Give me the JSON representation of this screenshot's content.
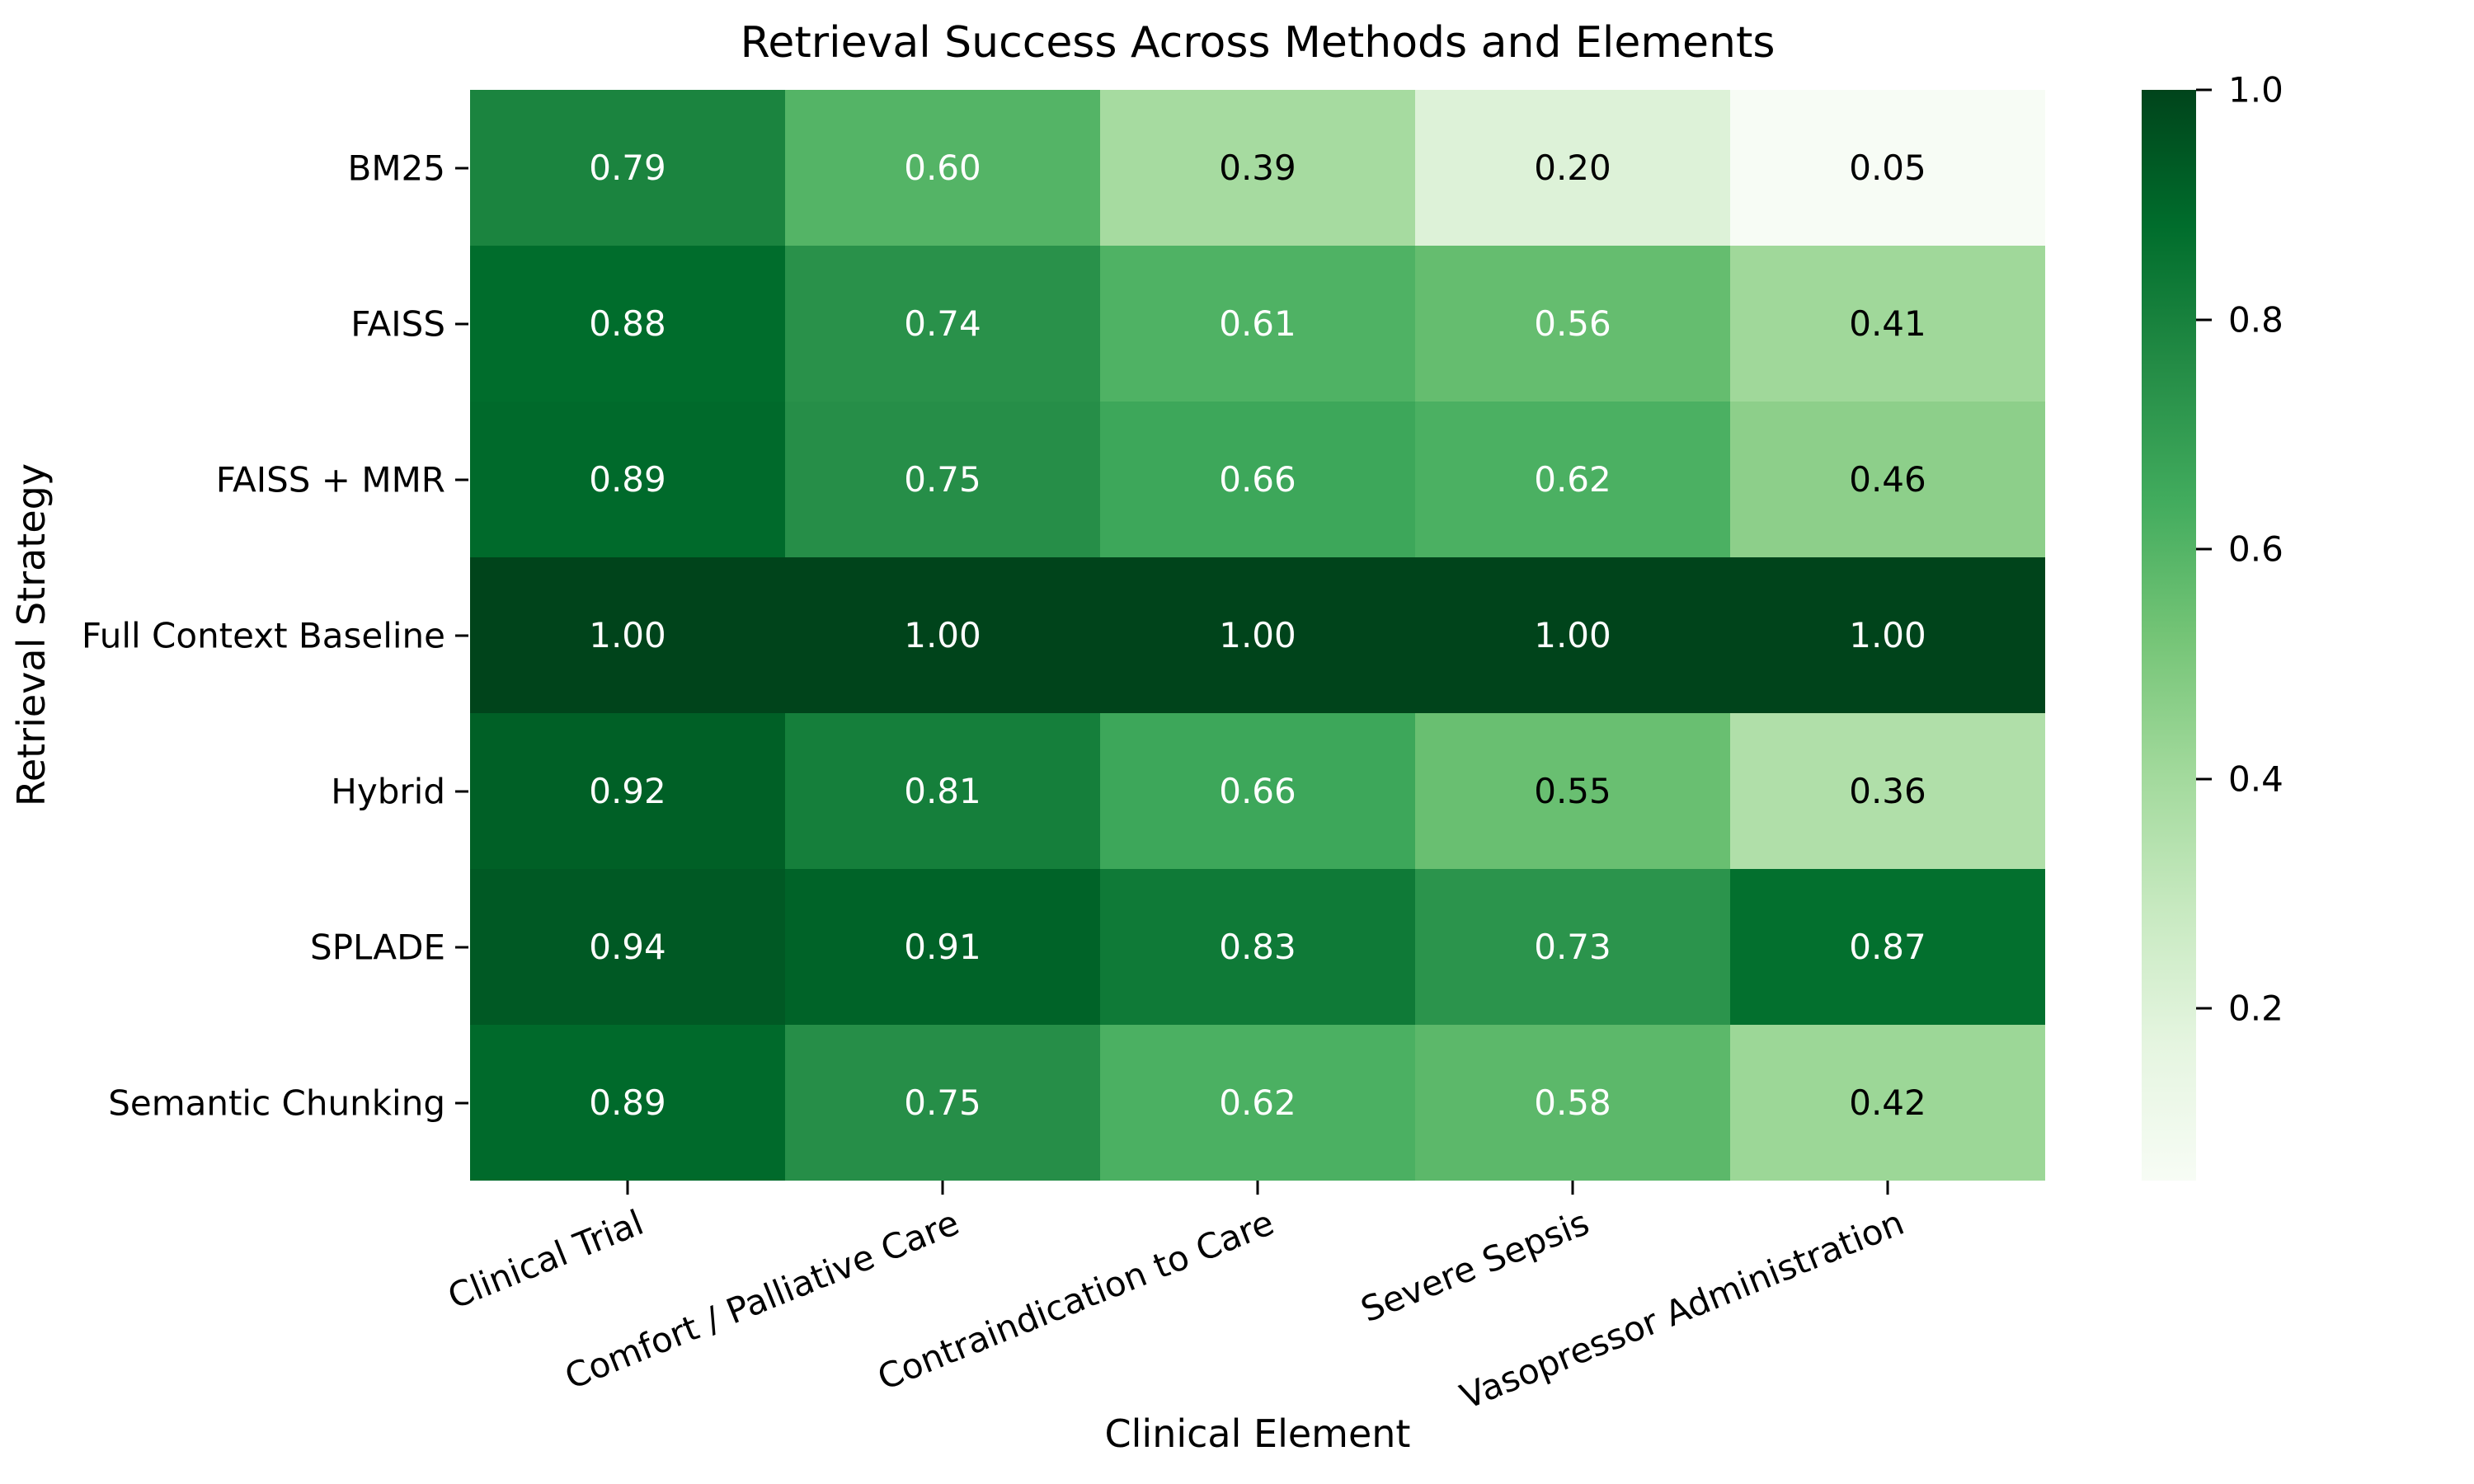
{
  "figure": {
    "title": "Retrieval Success Across Methods and Elements"
  },
  "chart_data": {
    "type": "heatmap",
    "title": "Retrieval Success Across Methods and Elements",
    "xlabel": "Clinical Element",
    "ylabel": "Retrieval Strategy",
    "rows": [
      "BM25",
      "FAISS",
      "FAISS + MMR",
      "Full Context Baseline",
      "Hybrid",
      "SPLADE",
      "Semantic Chunking"
    ],
    "columns": [
      "Clinical Trial",
      "Comfort / Palliative Care",
      "Contraindication to Care",
      "Severe Sepsis",
      "Vasopressor Administration"
    ],
    "values": [
      [
        0.79,
        0.6,
        0.39,
        0.2,
        0.05
      ],
      [
        0.88,
        0.74,
        0.61,
        0.56,
        0.41
      ],
      [
        0.89,
        0.75,
        0.66,
        0.62,
        0.46
      ],
      [
        1.0,
        1.0,
        1.0,
        1.0,
        1.0
      ],
      [
        0.92,
        0.81,
        0.66,
        0.55,
        0.36
      ],
      [
        0.94,
        0.91,
        0.83,
        0.73,
        0.87
      ],
      [
        0.89,
        0.75,
        0.62,
        0.58,
        0.42
      ]
    ],
    "vmin": 0.05,
    "vmax": 1.0,
    "colormap": "Greens",
    "colormap_hex": [
      "#f7fcf5",
      "#e5f5e0",
      "#c7e9c0",
      "#a1d99b",
      "#74c476",
      "#41ab5d",
      "#238b45",
      "#006d2c",
      "#00441b"
    ],
    "annotation_decimals": 2,
    "annotation_color_dark": "#000000",
    "annotation_color_light": "#ffffff",
    "colorbar_ticks": [
      "1.0",
      "0.8",
      "0.6",
      "0.4",
      "0.2"
    ],
    "colorbar_tick_values": [
      1.0,
      0.8,
      0.6,
      0.4,
      0.2
    ],
    "colorbar_position": "right",
    "grid": false
  }
}
